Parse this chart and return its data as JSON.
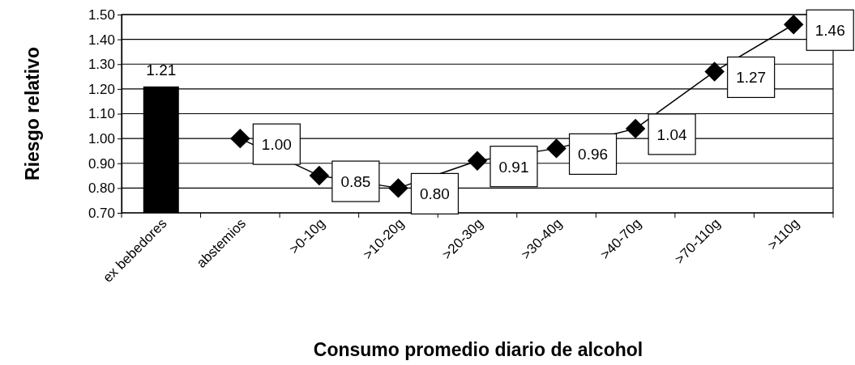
{
  "chart_data": {
    "type": "bar",
    "xlabel": "Consumo promedio diario de alcohol",
    "ylabel": "Riesgo relativo",
    "categories": [
      "ex bebedores",
      "abstemios",
      ">0-10g",
      ">10-20g",
      ">20-30g",
      ">30-40g",
      ">40-70g",
      ">70-110g",
      ">110g"
    ],
    "series": [
      {
        "color": "#000000",
        "values": [
          1.21,
          null,
          null,
          null,
          null,
          null,
          null,
          null,
          null
        ],
        "value_labels": [
          "1.21",
          null,
          null,
          null,
          null,
          null,
          null,
          null,
          null
        ]
      },
      {
        "type": "line",
        "color": "#000000",
        "marker": "diamond",
        "values": [
          null,
          1.0,
          0.85,
          0.8,
          0.91,
          0.96,
          1.04,
          1.27,
          1.46
        ],
        "value_labels": [
          null,
          "1.00",
          "0.85",
          "0.80",
          "0.91",
          "0.96",
          "1.04",
          "1.27",
          "1.46"
        ]
      }
    ],
    "ylim": [
      0.7,
      1.5
    ],
    "yticks": [
      {
        "value": 0.7,
        "label": "0.70"
      },
      {
        "value": 0.8,
        "label": "0.80"
      },
      {
        "value": 0.9,
        "label": "0.90"
      },
      {
        "value": 1.0,
        "label": "1.00"
      },
      {
        "value": 1.1,
        "label": "1.10"
      },
      {
        "value": 1.2,
        "label": "1.20"
      },
      {
        "value": 1.3,
        "label": "1.30"
      },
      {
        "value": 1.4,
        "label": "1.40"
      },
      {
        "value": 1.5,
        "label": "1.50"
      }
    ],
    "grid": "y"
  }
}
